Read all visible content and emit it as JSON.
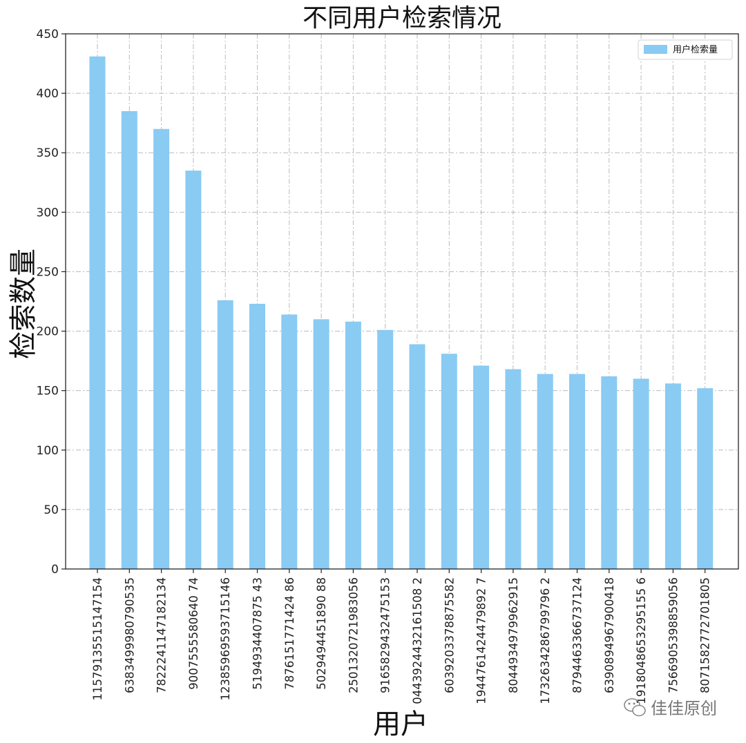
{
  "chart_data": {
    "type": "bar",
    "title": "不同用户检索情况",
    "xlabel": "用户",
    "ylabel": "检索数量",
    "categories": [
      "1157913551514715​4",
      "6383499980790535",
      "7822241147182134",
      "9007555580640 74",
      "1238596959371514​6",
      "5194934407875 43",
      "7876151771424 86",
      "5029494451890 88",
      "2501320721983056",
      "9165829432475153",
      "0443924432161508 2",
      "6039203378875582",
      "1944761424479892 7",
      "8044934979962915",
      "1732634286799796 2",
      "8794463366737124",
      "6390894967900418",
      "1918048653295155 6",
      "7566905398859056",
      "8071582772701805"
    ],
    "series": [
      {
        "name": "用户检索量",
        "color": "#89CBF2",
        "values": [
          431,
          385,
          370,
          335,
          226,
          223,
          214,
          210,
          208,
          201,
          189,
          181,
          171,
          168,
          164,
          164,
          162,
          160,
          156,
          152
        ]
      }
    ],
    "yticks": [
      0,
      50,
      100,
      150,
      200,
      250,
      300,
      350,
      400,
      450
    ],
    "ylim": [
      0,
      450
    ],
    "grid": true,
    "legend_position": "top-right"
  },
  "watermark": {
    "icon": "wechat-icon",
    "text": "佳佳原创"
  }
}
